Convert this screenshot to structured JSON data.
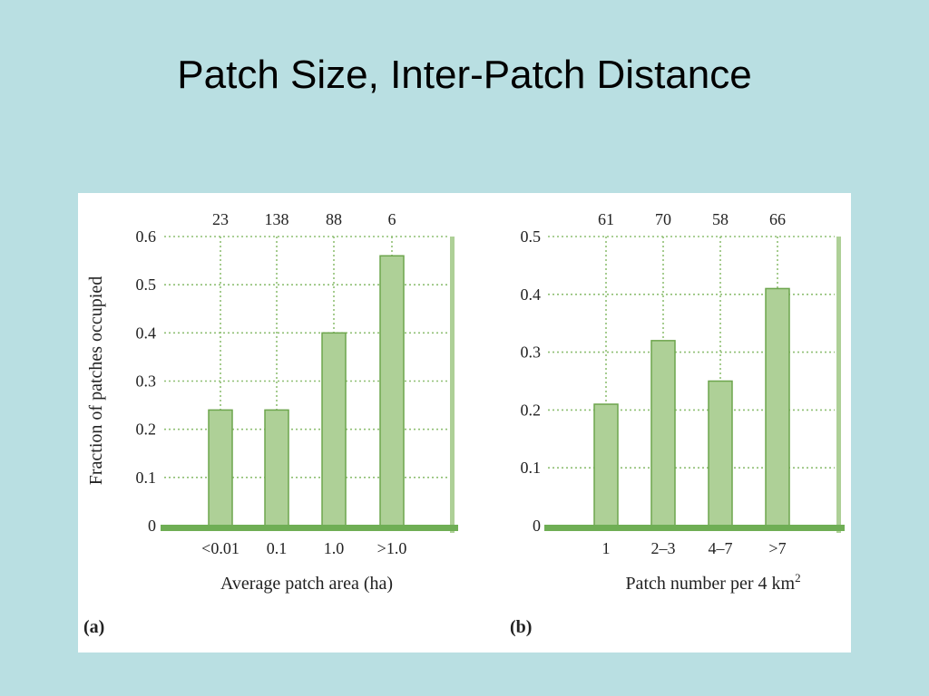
{
  "slide": {
    "title": "Patch Size, Inter-Patch Distance"
  },
  "colors": {
    "background": "#b9dfe2",
    "bar_fill": "#aed097",
    "bar_stroke": "#6da54d",
    "baseline": "#6fae55",
    "grid": "#8fbf73"
  },
  "chart_data": [
    {
      "type": "bar",
      "panel_label": "(a)",
      "categories": [
        "<0.01",
        "0.1",
        "1.0",
        ">1.0"
      ],
      "values": [
        0.24,
        0.24,
        0.4,
        0.56
      ],
      "sample_sizes": [
        "23",
        "138",
        "88",
        "6"
      ],
      "xlabel": "Average patch area (ha)",
      "ylabel": "Fraction of patches occupied",
      "ylim": [
        0,
        0.6
      ],
      "yticks": [
        "0",
        "0.1",
        "0.2",
        "0.3",
        "0.4",
        "0.5",
        "0.6"
      ],
      "grid": true
    },
    {
      "type": "bar",
      "panel_label": "(b)",
      "categories": [
        "1",
        "2–3",
        "4–7",
        ">7"
      ],
      "values": [
        0.21,
        0.32,
        0.25,
        0.41
      ],
      "sample_sizes": [
        "61",
        "70",
        "58",
        "66"
      ],
      "xlabel": "Patch number per 4 km",
      "xlabel_superscript": "2",
      "ylabel": "",
      "ylim": [
        0,
        0.5
      ],
      "yticks": [
        "0",
        "0.1",
        "0.2",
        "0.3",
        "0.4",
        "0.5"
      ],
      "grid": true
    }
  ]
}
